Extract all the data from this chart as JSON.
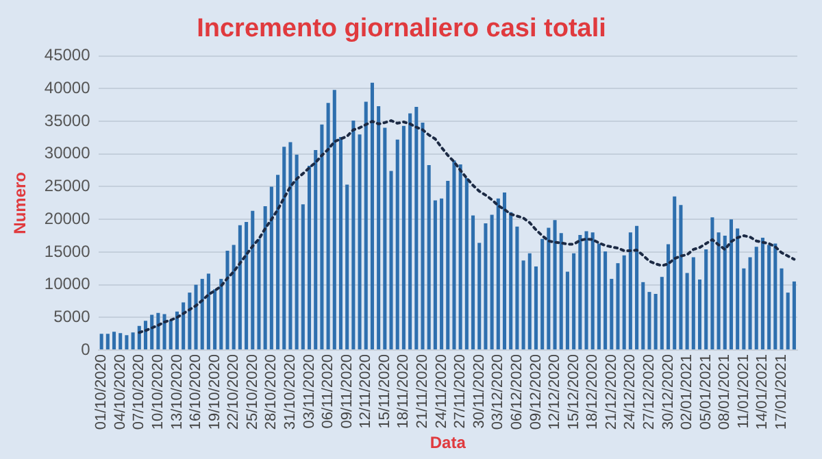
{
  "chart_data": {
    "type": "bar",
    "title": "Incremento giornaliero casi totali",
    "xlabel": "Data",
    "ylabel": "Numero",
    "categories": [
      "01/10/2020",
      null,
      null,
      "04/10/2020",
      null,
      null,
      "07/10/2020",
      null,
      null,
      "10/10/2020",
      null,
      null,
      "13/10/2020",
      null,
      null,
      "16/10/2020",
      null,
      null,
      "19/10/2020",
      null,
      null,
      "22/10/2020",
      null,
      null,
      "25/10/2020",
      null,
      null,
      "28/10/2020",
      null,
      null,
      "31/10/2020",
      null,
      null,
      "03/11/2020",
      null,
      null,
      "06/11/2020",
      null,
      null,
      "09/11/2020",
      null,
      null,
      "12/11/2020",
      null,
      null,
      "15/11/2020",
      null,
      null,
      "18/11/2020",
      null,
      null,
      "21/11/2020",
      null,
      null,
      "24/11/2020",
      null,
      null,
      "27/11/2020",
      null,
      null,
      "30/11/2020",
      null,
      null,
      "03/12/2020",
      null,
      null,
      "06/12/2020",
      null,
      null,
      "09/12/2020",
      null,
      null,
      "12/12/2020",
      null,
      null,
      "15/12/2020",
      null,
      null,
      "18/12/2020",
      null,
      null,
      "21/12/2020",
      null,
      null,
      "24/12/2020",
      null,
      null,
      "27/12/2020",
      null,
      null,
      "30/12/2020",
      null,
      null,
      "02/01/2021",
      null,
      null,
      "05/01/2021",
      null,
      null,
      "08/01/2021",
      null,
      null,
      "11/01/2021",
      null,
      null,
      "14/01/2021",
      null,
      null,
      "17/01/2021",
      null,
      null
    ],
    "series": [
      {
        "color": "#2e6fae",
        "values": [
          2500,
          2500,
          2800,
          2600,
          2300,
          2700,
          3700,
          4500,
          5400,
          5700,
          5500,
          4600,
          5900,
          7300,
          8800,
          10000,
          10900,
          11700,
          9300,
          10900,
          15200,
          16100,
          19100,
          19600,
          21300,
          17000,
          22000,
          25000,
          26800,
          31100,
          31800,
          29900,
          22300,
          28200,
          30600,
          34500,
          37800,
          39800,
          32600,
          25300,
          35100,
          33000,
          38000,
          40900,
          37300,
          34000,
          27400,
          32200,
          34300,
          36200,
          37200,
          34800,
          28300,
          22900,
          23200,
          25900,
          29000,
          28400,
          26300,
          20600,
          16400,
          19400,
          20700,
          23200,
          24100,
          21100,
          18900,
          13700,
          14800,
          12800,
          17000,
          18700,
          19900,
          17900,
          12000,
          14800,
          17600,
          18200,
          18000,
          16300,
          15100,
          10900,
          13300,
          14500,
          18000,
          19000,
          10400,
          8900,
          8600,
          11200,
          16200,
          23500,
          22200,
          11800,
          14200,
          10800,
          15400,
          20300,
          18000,
          17500,
          20000,
          18600,
          12500,
          14200,
          15800,
          17200,
          16100,
          16300,
          12500,
          8800,
          10500
        ]
      },
      {
        "type": "line",
        "color": "#1c2a44",
        "line_style": "dotted",
        "marker": "none",
        "values": [
          null,
          null,
          null,
          null,
          null,
          null,
          2700,
          3000,
          3400,
          3800,
          4300,
          4600,
          5000,
          5600,
          6200,
          6800,
          7600,
          8500,
          9100,
          9800,
          11000,
          12000,
          13300,
          14600,
          15900,
          17000,
          18600,
          20000,
          21500,
          23300,
          25000,
          26200,
          27000,
          27900,
          28700,
          29800,
          30700,
          31900,
          32300,
          32700,
          33700,
          34000,
          34500,
          35000,
          34600,
          34800,
          35100,
          34700,
          34900,
          34600,
          34100,
          33700,
          32900,
          32300,
          31000,
          29800,
          28800,
          27500,
          26300,
          25200,
          24300,
          23700,
          23000,
          22100,
          21500,
          20800,
          20500,
          20200,
          19500,
          18400,
          17500,
          16700,
          16500,
          16400,
          16200,
          16200,
          16800,
          17000,
          16900,
          16400,
          16000,
          15800,
          15600,
          15200,
          15200,
          15300,
          14500,
          13600,
          13200,
          12900,
          13200,
          14000,
          14400,
          14600,
          15400,
          15700,
          16300,
          16900,
          16100,
          15400,
          16600,
          17200,
          17500,
          17300,
          16700,
          16500,
          16300,
          15800,
          14900,
          14400,
          13900
        ]
      }
    ],
    "ylim": [
      0,
      45000
    ],
    "yticks": [
      0,
      5000,
      10000,
      15000,
      20000,
      25000,
      30000,
      35000,
      40000,
      45000
    ],
    "grid": "y",
    "legend": false
  }
}
